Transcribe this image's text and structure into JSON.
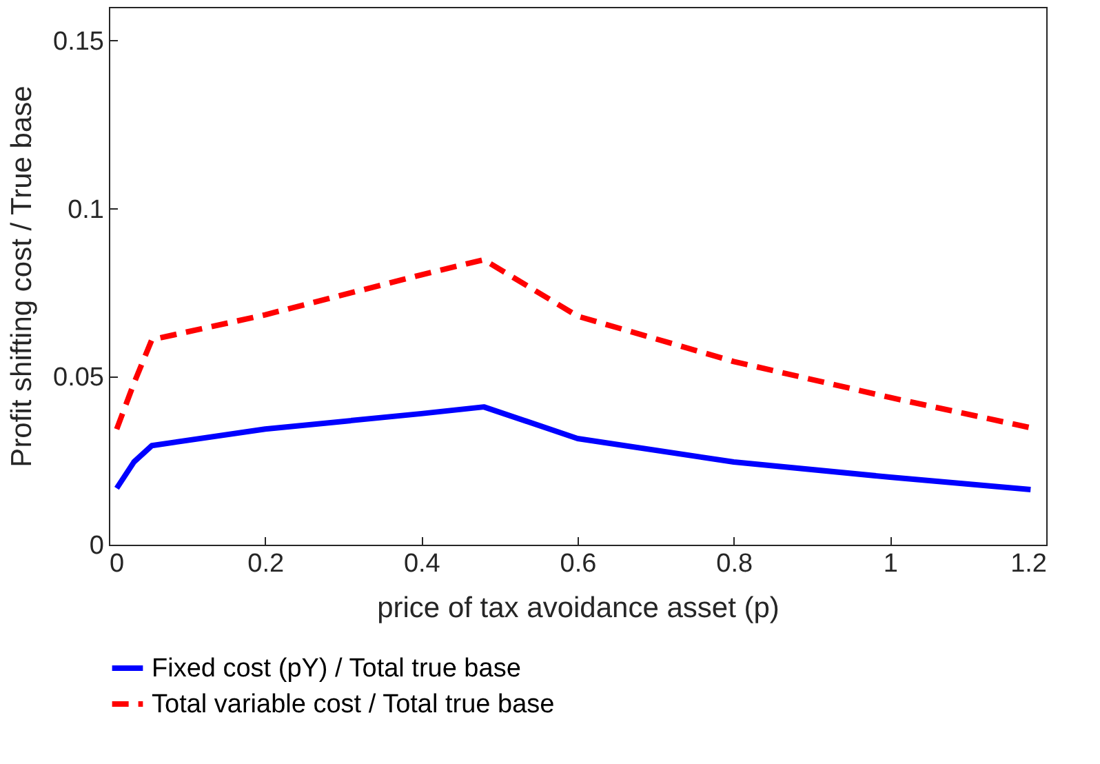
{
  "chart_data": {
    "type": "line",
    "xlabel": "price of tax avoidance asset (p)",
    "ylabel": "Profit shifting cost / True base",
    "xlim": [
      0,
      1.2
    ],
    "ylim": [
      0,
      0.16
    ],
    "xticks": [
      0,
      0.2,
      0.4,
      0.6,
      0.8,
      1,
      1.2
    ],
    "yticks": [
      0,
      0.05,
      {
        "value": 0.1,
        "label": "0.1"
      },
      0.15
    ],
    "grid": false,
    "legend": "bottom",
    "marker": "none",
    "x": [
      0.01,
      0.032,
      0.055,
      0.2,
      0.4,
      0.48,
      0.6,
      0.8,
      1.0,
      1.18
    ],
    "series": [
      {
        "name": "Fixed cost (pY) / Total true base",
        "color": "#0000ff",
        "line_style": "solid",
        "values": [
          0.0168,
          0.0246,
          0.0295,
          0.0344,
          0.039,
          0.041,
          0.0316,
          0.0246,
          0.0201,
          0.0164
        ]
      },
      {
        "name": "Total variable cost / Total true base",
        "color": "#ff0000",
        "line_style": "dashed",
        "values": [
          0.0344,
          0.048,
          0.061,
          0.0684,
          0.0803,
          0.0848,
          0.068,
          0.0545,
          0.0438,
          0.0348
        ]
      }
    ]
  }
}
